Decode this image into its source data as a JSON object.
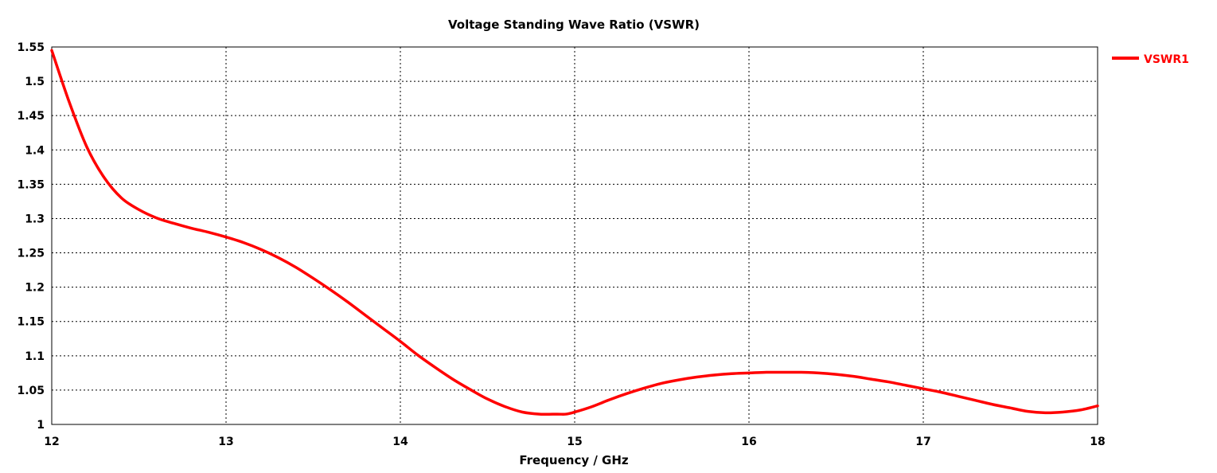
{
  "chart_data": {
    "type": "line",
    "title": "Voltage Standing Wave Ratio (VSWR)",
    "xlabel": "Frequency / GHz",
    "ylabel": "",
    "xlim": [
      12,
      18
    ],
    "ylim": [
      1,
      1.55
    ],
    "xticks": [
      12,
      13,
      14,
      15,
      16,
      17,
      18
    ],
    "yticks": [
      1,
      1.05,
      1.1,
      1.15,
      1.2,
      1.25,
      1.3,
      1.35,
      1.4,
      1.45,
      1.5,
      1.55
    ],
    "ytick_labels": [
      "1",
      "1.05",
      "1.1",
      "1.15",
      "1.2",
      "1.25",
      "1.3",
      "1.35",
      "1.4",
      "1.45",
      "1.5",
      "1.55"
    ],
    "grid": true,
    "legend_position": "top-right-outside",
    "series": [
      {
        "name": "VSWR1",
        "color": "#ff0000",
        "x": [
          12.0,
          12.1,
          12.2,
          12.3,
          12.4,
          12.5,
          12.6,
          12.7,
          12.8,
          12.9,
          13.0,
          13.1,
          13.2,
          13.3,
          13.4,
          13.5,
          13.6,
          13.7,
          13.8,
          13.9,
          14.0,
          14.1,
          14.2,
          14.3,
          14.4,
          14.5,
          14.6,
          14.7,
          14.8,
          14.9,
          14.95,
          15.0,
          15.1,
          15.2,
          15.3,
          15.4,
          15.5,
          15.6,
          15.7,
          15.8,
          15.9,
          16.0,
          16.1,
          16.2,
          16.3,
          16.4,
          16.5,
          16.6,
          16.7,
          16.8,
          16.9,
          17.0,
          17.1,
          17.2,
          17.3,
          17.4,
          17.5,
          17.6,
          17.7,
          17.8,
          17.9,
          18.0
        ],
        "y": [
          1.545,
          1.47,
          1.405,
          1.36,
          1.33,
          1.313,
          1.301,
          1.293,
          1.286,
          1.28,
          1.273,
          1.265,
          1.255,
          1.243,
          1.229,
          1.213,
          1.196,
          1.178,
          1.159,
          1.14,
          1.121,
          1.101,
          1.083,
          1.066,
          1.051,
          1.037,
          1.026,
          1.018,
          1.015,
          1.015,
          1.015,
          1.018,
          1.026,
          1.036,
          1.045,
          1.053,
          1.06,
          1.065,
          1.069,
          1.072,
          1.074,
          1.075,
          1.076,
          1.076,
          1.076,
          1.075,
          1.073,
          1.07,
          1.066,
          1.062,
          1.057,
          1.052,
          1.047,
          1.041,
          1.035,
          1.029,
          1.024,
          1.019,
          1.017,
          1.018,
          1.021,
          1.027
        ]
      }
    ]
  }
}
